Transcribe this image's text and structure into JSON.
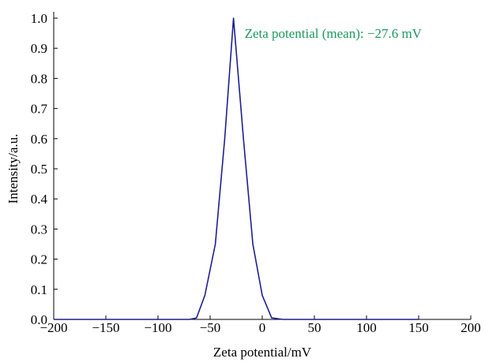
{
  "chart_data": {
    "type": "line",
    "xlabel": "Zeta potential/mV",
    "ylabel": "Intensity/a.u.",
    "xlim": [
      -200,
      200
    ],
    "ylim": [
      0.0,
      1.0
    ],
    "x_ticks": [
      -200,
      -150,
      -100,
      -50,
      0,
      50,
      100,
      150,
      200
    ],
    "x_tick_labels": [
      "−200",
      "−150",
      "−100",
      "−50",
      "0",
      "50",
      "100",
      "150",
      "200"
    ],
    "y_ticks": [
      0.0,
      0.1,
      0.2,
      0.3,
      0.4,
      0.5,
      0.6,
      0.7,
      0.8,
      0.9,
      1.0
    ],
    "y_tick_labels": [
      "0.0",
      "0.1",
      "0.2",
      "0.3",
      "0.4",
      "0.5",
      "0.6",
      "0.7",
      "0.8",
      "0.9",
      "1.0"
    ],
    "grid": false,
    "series": [
      {
        "color": "#1f1f8f",
        "x": [
          -200,
          -70,
          -63,
          -55,
          -45,
          -36,
          -27.6,
          -18,
          -9,
          0,
          9,
          20,
          150
        ],
        "y": [
          0.0,
          0.0,
          0.005,
          0.08,
          0.25,
          0.6,
          1.0,
          0.6,
          0.25,
          0.08,
          0.005,
          0.0,
          0.0
        ]
      }
    ],
    "annotations": [
      {
        "text": "Zeta potential (mean): −27.6 mV",
        "color": "#1a9a5c",
        "x": -27.6,
        "y": 1.0
      }
    ]
  }
}
